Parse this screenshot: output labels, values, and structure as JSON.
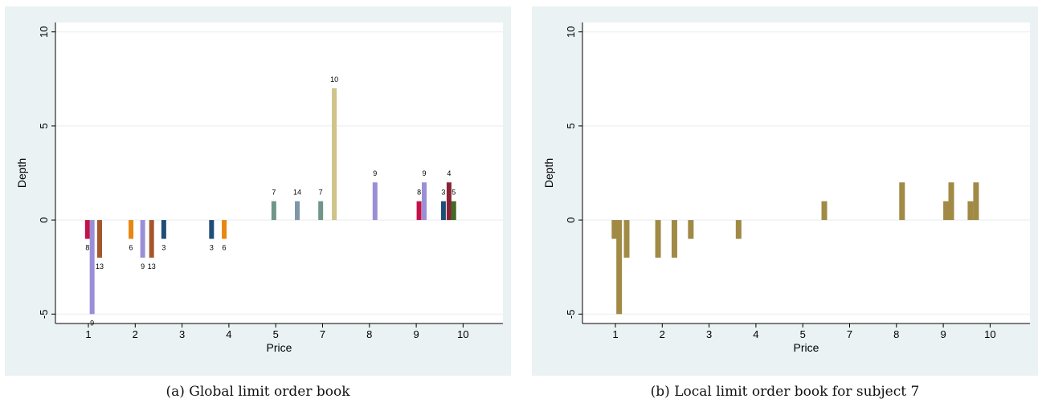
{
  "chart_data": [
    {
      "type": "bar",
      "xlabel": "Price",
      "ylabel": "Depth",
      "ylim": [
        -5.5,
        10.5
      ],
      "yticks": [
        -5,
        0,
        5,
        10
      ],
      "xticks": [
        "1",
        "2",
        "3",
        "4",
        "5",
        "7",
        "8",
        "9",
        "10"
      ],
      "grid": true,
      "colors": {
        "background": "#eaf2f3",
        "plot": "#ffffff",
        "grid": "#e8eeee",
        "axis": "#000000"
      },
      "bars": [
        {
          "x": 0.98,
          "depth": -1,
          "label": "8",
          "color": "#c3124a"
        },
        {
          "x": 1.08,
          "depth": -5,
          "label": "9",
          "color": "#9a8fd6"
        },
        {
          "x": 1.24,
          "depth": -2,
          "label": "13",
          "color": "#a6562c"
        },
        {
          "x": 1.91,
          "depth": -1,
          "label": "6",
          "color": "#e8870f"
        },
        {
          "x": 2.16,
          "depth": -2,
          "label": "9",
          "color": "#9a8fd6"
        },
        {
          "x": 2.35,
          "depth": -2,
          "label": "13",
          "color": "#a6562c"
        },
        {
          "x": 2.61,
          "depth": -1,
          "label": "3",
          "color": "#1e4d78"
        },
        {
          "x": 3.63,
          "depth": -1,
          "label": "3",
          "color": "#1e4d78"
        },
        {
          "x": 3.9,
          "depth": -1,
          "label": "6",
          "color": "#e8870f"
        },
        {
          "x": 4.96,
          "depth": 1,
          "label": "7",
          "color": "#6f9688"
        },
        {
          "x": 5.46,
          "depth": 1,
          "label": "14",
          "color": "#7d97a8"
        },
        {
          "x": 5.96,
          "depth": 1,
          "label": "7",
          "color": "#6f9688"
        },
        {
          "x": 6.25,
          "depth": 7,
          "label": "10",
          "color": "#cfc38a"
        },
        {
          "x": 7.12,
          "depth": 2,
          "label": "9",
          "color": "#9a8fd6"
        },
        {
          "x": 8.06,
          "depth": 1,
          "label": "8",
          "color": "#c3124a"
        },
        {
          "x": 8.17,
          "depth": 2,
          "label": "9",
          "color": "#9a8fd6"
        },
        {
          "x": 8.58,
          "depth": 1,
          "label": "3",
          "color": "#1e4d78"
        },
        {
          "x": 8.7,
          "depth": 2,
          "label": "4",
          "color": "#8a2236"
        },
        {
          "x": 8.8,
          "depth": 1,
          "label": "5",
          "color": "#3f6b26"
        }
      ]
    },
    {
      "type": "bar",
      "xlabel": "Price",
      "ylabel": "Depth",
      "ylim": [
        -5.5,
        10.5
      ],
      "yticks": [
        -5,
        0,
        5,
        10
      ],
      "xticks": [
        "1",
        "2",
        "3",
        "4",
        "5",
        "7",
        "8",
        "9",
        "10"
      ],
      "grid": true,
      "colors": {
        "background": "#eaf2f3",
        "plot": "#ffffff",
        "grid": "#e8eeee",
        "axis": "#000000",
        "bar": "#a08a45"
      },
      "bars": [
        {
          "x": 0.98,
          "depth": -1
        },
        {
          "x": 1.08,
          "depth": -5
        },
        {
          "x": 1.24,
          "depth": -2
        },
        {
          "x": 1.91,
          "depth": -2
        },
        {
          "x": 2.26,
          "depth": -2
        },
        {
          "x": 2.61,
          "depth": -1
        },
        {
          "x": 3.63,
          "depth": -1
        },
        {
          "x": 5.46,
          "depth": 1
        },
        {
          "x": 7.12,
          "depth": 2
        },
        {
          "x": 8.06,
          "depth": 1
        },
        {
          "x": 8.17,
          "depth": 2
        },
        {
          "x": 8.58,
          "depth": 1
        },
        {
          "x": 8.7,
          "depth": 2
        }
      ]
    }
  ],
  "captions": {
    "a": "(a)  Global limit order book",
    "b": "(b)  Local limit order book for subject 7"
  }
}
